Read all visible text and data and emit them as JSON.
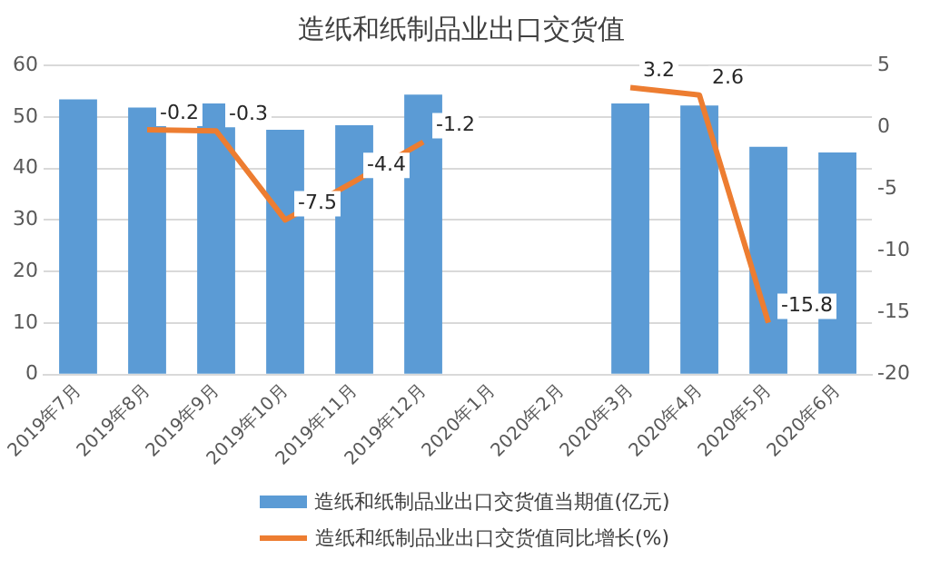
{
  "chart_data": {
    "type": "bar",
    "title": "造纸和纸制品业出口交货值",
    "categories": [
      "2019年7月",
      "2019年8月",
      "2019年9月",
      "2019年10月",
      "2019年11月",
      "2019年12月",
      "2020年1月",
      "2020年2月",
      "2020年3月",
      "2020年4月",
      "2020年5月",
      "2020年6月"
    ],
    "series": [
      {
        "name": "造纸和纸制品业出口交货值当期值(亿元)",
        "color": "#5b9bd5",
        "values": [
          53.4,
          51.8,
          52.6,
          47.5,
          48.4,
          54.3,
          null,
          null,
          52.6,
          52.2,
          44.2,
          43.1
        ]
      },
      {
        "name": "造纸和纸制品业出口交货值同比增长(%)",
        "type": "line",
        "axis": "y2",
        "color": "#ed7d31",
        "values": [
          null,
          -0.2,
          -0.3,
          -7.5,
          -4.4,
          -1.2,
          null,
          null,
          3.2,
          2.6,
          -15.8,
          null
        ],
        "value_labels": [
          null,
          "-0.2",
          "-0.3",
          "-7.5",
          "-4.4",
          "-1.2",
          null,
          null,
          "3.2",
          "2.6",
          "-15.8",
          null
        ]
      }
    ],
    "ylim": [
      0,
      60
    ],
    "yticks": [
      0,
      10,
      20,
      30,
      40,
      50,
      60
    ],
    "y2lim": [
      -20,
      5
    ],
    "y2ticks": [
      -20,
      -15,
      -10,
      -5,
      0,
      5
    ],
    "grid": "y",
    "legend": "bottom",
    "marker": "none"
  }
}
